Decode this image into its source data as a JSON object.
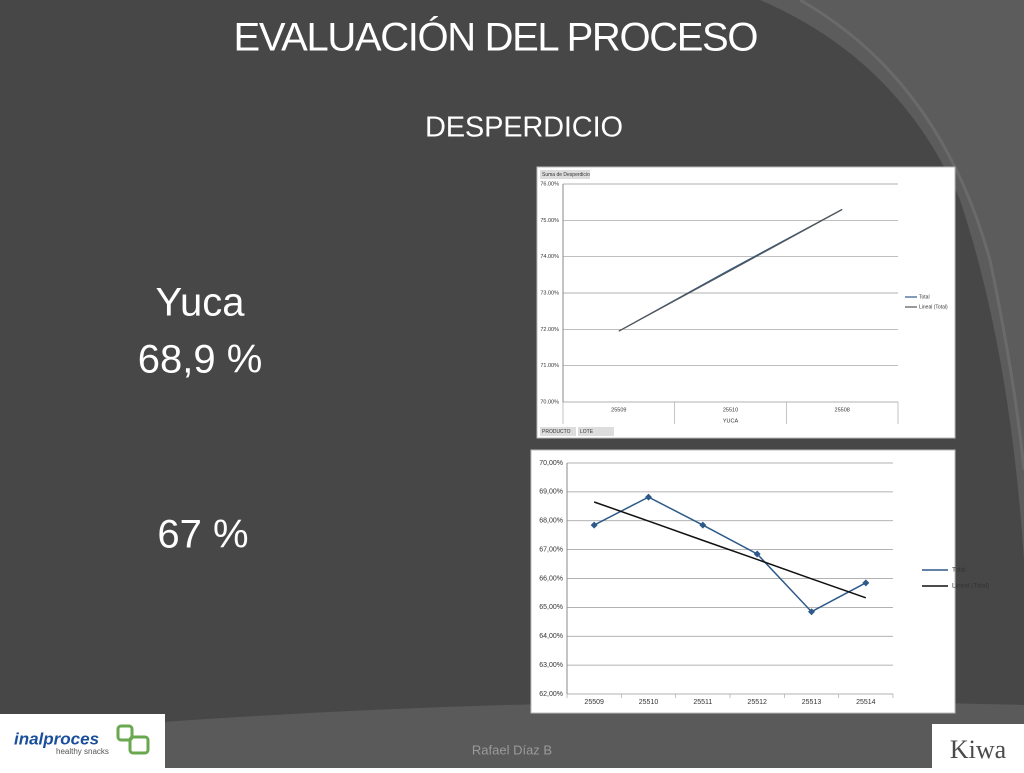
{
  "slide": {
    "title": "EVALUACIÓN DEL PROCESO",
    "subtitle": "DESPERDICIO",
    "product": "Yuca",
    "value_1": "68,9 %",
    "value_2": "67 %",
    "footer": "Rafael Díaz B",
    "logo_left": "inalproces",
    "logo_left_tagline": "healthy snacks",
    "logo_right": "Kiwa"
  },
  "chart_data": [
    {
      "type": "line",
      "title": "Suma de Desperdicio",
      "x_label": "YUCA",
      "field_buttons": [
        "PRODUCTO",
        "LOTE"
      ],
      "categories": [
        "25509",
        "25510",
        "25508"
      ],
      "series": [
        {
          "name": "Total",
          "color": "#2e5a8a",
          "values": [
            71.95,
            73.65,
            75.3
          ]
        },
        {
          "name": "Lineal (Total)",
          "color": "#555555",
          "values": [
            71.95,
            73.62,
            75.3
          ]
        }
      ],
      "ylim": [
        70,
        76
      ],
      "yticks": [
        {
          "value": 70,
          "label": "70.00%"
        },
        {
          "value": 71,
          "label": "71.00%"
        },
        {
          "value": 72,
          "label": "72.00%"
        },
        {
          "value": 73,
          "label": "73.00%"
        },
        {
          "value": 74,
          "label": "74.00%"
        },
        {
          "value": 75,
          "label": "75.00%"
        },
        {
          "value": 76,
          "label": "76.00%"
        }
      ],
      "grid": true,
      "legend": "right",
      "markers": false
    },
    {
      "type": "line",
      "categories": [
        "25509",
        "25510",
        "25511",
        "25512",
        "25513",
        "25514"
      ],
      "series": [
        {
          "name": "Total",
          "color": "#2e5a8a",
          "values": [
            67.85,
            68.82,
            67.85,
            66.85,
            64.85,
            65.85
          ]
        },
        {
          "name": "Lineal (Total)",
          "color": "#111111",
          "values": [
            68.65,
            67.99,
            67.32,
            66.66,
            65.99,
            65.33
          ]
        }
      ],
      "ylim": [
        62,
        70
      ],
      "yticks": [
        {
          "value": 62,
          "label": "62,00%"
        },
        {
          "value": 63,
          "label": "63,00%"
        },
        {
          "value": 64,
          "label": "64,00%"
        },
        {
          "value": 65,
          "label": "65,00%"
        },
        {
          "value": 66,
          "label": "66,00%"
        },
        {
          "value": 67,
          "label": "67,00%"
        },
        {
          "value": 68,
          "label": "68,00%"
        },
        {
          "value": 69,
          "label": "69,00%"
        },
        {
          "value": 70,
          "label": "70,00%"
        }
      ],
      "grid": true,
      "legend": "right",
      "markers": true
    }
  ]
}
